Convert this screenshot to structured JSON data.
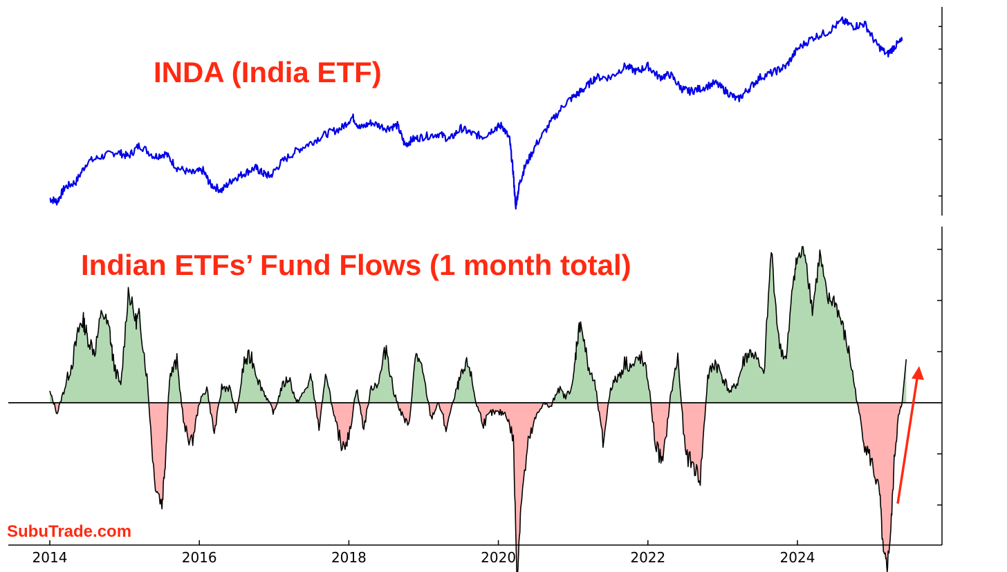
{
  "chart_data": [
    {
      "type": "line",
      "title": "INDA (India ETF)",
      "xlabel": "",
      "ylabel": "",
      "x_range": [
        2014.0,
        2025.9
      ],
      "y_range": [
        24,
        58
      ],
      "y_ticks_labeled": false,
      "grid": false,
      "colors": {
        "line": "#0000e6",
        "title": "#ff2a12"
      },
      "series": [
        {
          "x": [
            2014.0,
            2014.1,
            2014.2,
            2014.35,
            2014.5,
            2014.7,
            2014.9,
            2015.05,
            2015.2,
            2015.4,
            2015.55,
            2015.7,
            2015.9,
            2016.05,
            2016.15,
            2016.3,
            2016.45,
            2016.6,
            2016.75,
            2016.85,
            2016.95,
            2017.1,
            2017.3,
            2017.5,
            2017.7,
            2017.9,
            2018.05,
            2018.15,
            2018.3,
            2018.5,
            2018.65,
            2018.75,
            2018.85,
            2019.0,
            2019.2,
            2019.35,
            2019.5,
            2019.65,
            2019.8,
            2019.95,
            2020.05,
            2020.15,
            2020.2,
            2020.23,
            2020.28,
            2020.35,
            2020.5,
            2020.7,
            2020.9,
            2021.05,
            2021.15,
            2021.3,
            2021.5,
            2021.7,
            2021.85,
            2022.0,
            2022.15,
            2022.3,
            2022.45,
            2022.55,
            2022.7,
            2022.9,
            2023.05,
            2023.2,
            2023.35,
            2023.5,
            2023.7,
            2023.85,
            2024.0,
            2024.2,
            2024.4,
            2024.6,
            2024.75,
            2024.9,
            2025.05,
            2025.2,
            2025.3,
            2025.4
          ],
          "y": [
            25.5,
            25,
            27.5,
            28.5,
            32,
            33,
            33.8,
            33,
            35,
            33,
            33.5,
            31,
            30,
            30.5,
            28,
            27,
            29,
            30,
            31,
            30,
            29.5,
            32,
            34,
            35.5,
            37,
            38,
            40,
            38,
            39,
            38,
            38.5,
            35,
            36,
            36.5,
            37,
            36,
            38,
            37,
            36.5,
            38,
            38.5,
            36,
            30,
            24,
            28,
            31,
            35,
            39,
            42.5,
            44,
            45,
            47,
            47,
            49,
            48,
            49,
            47,
            47.5,
            45,
            44.5,
            45,
            46,
            44.5,
            43,
            45,
            47,
            48,
            49,
            52,
            54,
            55,
            57,
            56,
            56.5,
            53,
            51,
            52.5,
            53.5
          ]
        }
      ]
    },
    {
      "type": "area",
      "title": "Indian ETFs’ Fund Flows (1 month total)",
      "xlabel": "",
      "ylabel": "",
      "x_range": [
        2014.0,
        2025.9
      ],
      "y_range": [
        -4.1,
        6.0
      ],
      "y_ticks_labeled": false,
      "x_ticks": [
        "2014",
        "2016",
        "2018",
        "2020",
        "2022",
        "2024"
      ],
      "grid": false,
      "colors": {
        "line": "#000000",
        "positive_fill": "#b3d9b3",
        "negative_fill": "#ffb3b3",
        "arrow": "#ff2a12",
        "title": "#ff2a12"
      },
      "series": [
        {
          "x": [
            2014.0,
            2014.1,
            2014.2,
            2014.3,
            2014.4,
            2014.45,
            2014.5,
            2014.6,
            2014.7,
            2014.8,
            2014.85,
            2014.95,
            2015.05,
            2015.15,
            2015.2,
            2015.3,
            2015.4,
            2015.5,
            2015.55,
            2015.6,
            2015.7,
            2015.8,
            2015.9,
            2016.0,
            2016.1,
            2016.2,
            2016.3,
            2016.4,
            2016.5,
            2016.6,
            2016.7,
            2016.8,
            2016.9,
            2017.0,
            2017.1,
            2017.2,
            2017.3,
            2017.4,
            2017.5,
            2017.6,
            2017.7,
            2017.8,
            2017.9,
            2018.0,
            2018.1,
            2018.2,
            2018.3,
            2018.4,
            2018.5,
            2018.6,
            2018.7,
            2018.8,
            2018.9,
            2019.0,
            2019.1,
            2019.2,
            2019.3,
            2019.45,
            2019.5,
            2019.6,
            2019.7,
            2019.8,
            2019.9,
            2020.0,
            2020.1,
            2020.2,
            2020.25,
            2020.3,
            2020.4,
            2020.5,
            2020.6,
            2020.7,
            2020.8,
            2020.9,
            2021.0,
            2021.05,
            2021.1,
            2021.2,
            2021.3,
            2021.4,
            2021.5,
            2021.6,
            2021.7,
            2021.8,
            2021.9,
            2022.0,
            2022.1,
            2022.2,
            2022.3,
            2022.4,
            2022.5,
            2022.6,
            2022.7,
            2022.8,
            2022.9,
            2023.0,
            2023.1,
            2023.2,
            2023.3,
            2023.4,
            2023.55,
            2023.65,
            2023.75,
            2023.85,
            2023.95,
            2024.0,
            2024.1,
            2024.2,
            2024.3,
            2024.4,
            2024.5,
            2024.6,
            2024.7,
            2024.8,
            2024.9,
            2025.0,
            2025.1,
            2025.15,
            2025.2,
            2025.25,
            2025.3,
            2025.35,
            2025.4
          ],
          "y": [
            0.2,
            -0.2,
            0.3,
            0.8,
            1.5,
            1.6,
            1.3,
            1.0,
            1.8,
            1.4,
            0.8,
            0.3,
            2.2,
            1.6,
            1.7,
            0.5,
            -1.5,
            -2.0,
            -1.0,
            0.5,
            0.8,
            -0.5,
            -0.8,
            0.0,
            0.3,
            -0.6,
            0.3,
            0.3,
            -0.2,
            0.8,
            0.9,
            0.4,
            0.1,
            -0.2,
            0.3,
            0.5,
            0.0,
            0.2,
            0.5,
            -0.5,
            0.6,
            -0.3,
            -0.8,
            -0.7,
            0.3,
            -0.5,
            0.3,
            0.4,
            1.1,
            0.2,
            -0.2,
            -0.5,
            1.0,
            0.5,
            -0.3,
            0.0,
            -0.5,
            0.3,
            0.5,
            0.8,
            0.0,
            -0.4,
            -0.2,
            -0.2,
            -0.2,
            -0.7,
            -3.5,
            -2.0,
            -0.8,
            -0.3,
            0.0,
            -0.1,
            0.3,
            0.1,
            0.4,
            1.2,
            1.6,
            0.7,
            0.3,
            -0.8,
            0.3,
            0.5,
            0.8,
            0.7,
            0.9,
            0.5,
            -0.8,
            -1.2,
            0.1,
            0.9,
            -1.0,
            -1.2,
            -1.5,
            0.5,
            0.8,
            0.5,
            0.2,
            0.4,
            0.9,
            1.0,
            0.5,
            3.0,
            1.2,
            0.8,
            2.5,
            2.8,
            3.0,
            1.8,
            2.9,
            2.0,
            2.0,
            1.5,
            0.9,
            0.0,
            -0.8,
            -1.2,
            -1.8,
            -3.0,
            -3.2,
            -2.5,
            -1.0,
            -0.3,
            0.0
          ]
        }
      ]
    }
  ],
  "x_tick_labels": [
    "2014",
    "2016",
    "2018",
    "2020",
    "2022",
    "2024"
  ],
  "watermark": "SubuTrade.com"
}
